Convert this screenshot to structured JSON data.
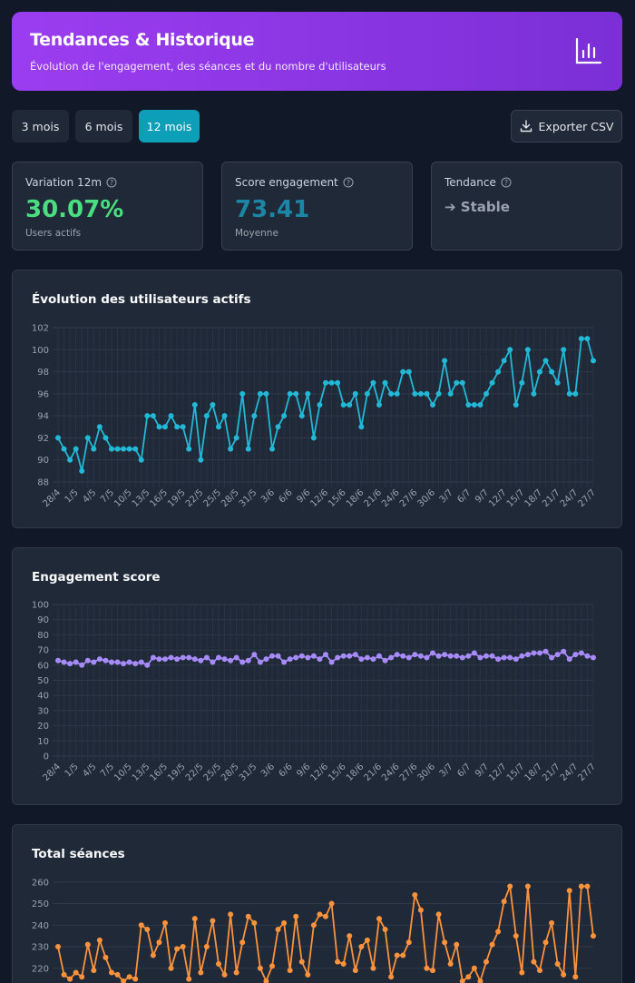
{
  "header": {
    "title": "Tendances & Historique",
    "subtitle": "Évolution de l'engagement, des séances et du nombre d'utilisateurs"
  },
  "tabs": [
    "3 mois",
    "6 mois",
    "12 mois"
  ],
  "export": "Exporter CSV",
  "cards": [
    {
      "label": "Variation 12m",
      "value": "30.07%",
      "caption": "Users actifs"
    },
    {
      "label": "Score engagement",
      "value": "73.41",
      "caption": "Moyenne"
    },
    {
      "label": "Tendance",
      "value": "➔ Stable"
    }
  ],
  "chart_data": [
    {
      "type": "line",
      "title": "Évolution des utilisateurs actifs",
      "color": "#22b8d6",
      "categories": [
        "28/4",
        null,
        null,
        "1/5",
        null,
        null,
        "4/5",
        null,
        null,
        "7/5",
        null,
        null,
        "10/5",
        null,
        null,
        "13/5",
        null,
        null,
        "16/5",
        null,
        null,
        "19/5",
        null,
        null,
        "22/5",
        null,
        null,
        "25/5",
        null,
        null,
        "28/5",
        null,
        null,
        "31/5",
        null,
        null,
        "3/6",
        null,
        null,
        "6/6",
        null,
        null,
        "9/6",
        null,
        null,
        "12/6",
        null,
        null,
        "15/6",
        null,
        null,
        "18/6",
        null,
        null,
        "21/6",
        null,
        null,
        "24/6",
        null,
        null,
        "27/6",
        null,
        null,
        "30/6",
        null,
        null,
        "3/7",
        null,
        null,
        "6/7",
        null,
        null,
        "9/7",
        null,
        null,
        "12/7",
        null,
        null,
        "15/7",
        null,
        null,
        "18/7",
        null,
        null,
        "21/7",
        null,
        null,
        "24/7",
        null,
        null,
        "27/7"
      ],
      "values": [
        92,
        91,
        90,
        91,
        89,
        92,
        91,
        93,
        92,
        91,
        91,
        91,
        91,
        91,
        90,
        94,
        94,
        93,
        93,
        94,
        93,
        93,
        91,
        95,
        90,
        94,
        95,
        93,
        94,
        91,
        92,
        96,
        91,
        94,
        96,
        96,
        91,
        93,
        94,
        96,
        96,
        94,
        96,
        92,
        95,
        97,
        97,
        97,
        95,
        95,
        96,
        93,
        96,
        97,
        95,
        97,
        96,
        96,
        98,
        98,
        96,
        96,
        96,
        95,
        96,
        99,
        96,
        97,
        97,
        95,
        95,
        95,
        96,
        97,
        98,
        99,
        100,
        95,
        97,
        100,
        96,
        98,
        99,
        98,
        97,
        100,
        96,
        96,
        101,
        101,
        99
      ],
      "ylim": [
        88,
        102
      ],
      "yticks": [
        88,
        90,
        92,
        94,
        96,
        98,
        100,
        102
      ],
      "grid": true
    },
    {
      "type": "line",
      "title": "Engagement score",
      "color": "#a78bfa",
      "categories": [
        "28/4",
        null,
        null,
        "1/5",
        null,
        null,
        "4/5",
        null,
        null,
        "7/5",
        null,
        null,
        "10/5",
        null,
        null,
        "13/5",
        null,
        null,
        "16/5",
        null,
        null,
        "19/5",
        null,
        null,
        "22/5",
        null,
        null,
        "25/5",
        null,
        null,
        "28/5",
        null,
        null,
        "31/5",
        null,
        null,
        "3/6",
        null,
        null,
        "6/6",
        null,
        null,
        "9/6",
        null,
        null,
        "12/6",
        null,
        null,
        "15/6",
        null,
        null,
        "18/6",
        null,
        null,
        "21/6",
        null,
        null,
        "24/6",
        null,
        null,
        "27/6",
        null,
        null,
        "30/6",
        null,
        null,
        "3/7",
        null,
        null,
        "6/7",
        null,
        null,
        "9/7",
        null,
        null,
        "12/7",
        null,
        null,
        "15/7",
        null,
        null,
        "18/7",
        null,
        null,
        "21/7",
        null,
        null,
        "24/7",
        null,
        null,
        "27/7"
      ],
      "values": [
        63,
        62,
        61,
        62,
        60,
        63,
        62,
        64,
        63,
        62,
        62,
        61,
        62,
        61,
        62,
        60,
        65,
        64,
        64,
        65,
        64,
        65,
        65,
        64,
        63,
        65,
        62,
        65,
        64,
        63,
        65,
        62,
        63,
        67,
        62,
        64,
        66,
        66,
        62,
        64,
        65,
        66,
        65,
        66,
        64,
        67,
        62,
        65,
        66,
        66,
        67,
        64,
        65,
        64,
        66,
        63,
        65,
        67,
        66,
        65,
        67,
        66,
        65,
        68,
        66,
        67,
        66,
        66,
        65,
        66,
        68,
        65,
        66,
        66,
        64,
        65,
        65,
        64,
        66,
        67,
        68,
        68,
        69,
        65,
        67,
        69,
        64,
        67,
        68,
        66,
        65
      ],
      "ylim": [
        0,
        100
      ],
      "yticks": [
        0,
        10,
        20,
        30,
        40,
        50,
        60,
        70,
        80,
        90,
        100
      ],
      "grid": true
    },
    {
      "type": "line",
      "title": "Total séances",
      "color": "#fb923c",
      "values": [
        230,
        217,
        215,
        218,
        216,
        231,
        219,
        233,
        225,
        218,
        217,
        214,
        216,
        215,
        240,
        238,
        226,
        232,
        241,
        220,
        229,
        230,
        215,
        243,
        218,
        230,
        242,
        222,
        217,
        245,
        218,
        232,
        244,
        241,
        220,
        214,
        221,
        238,
        241,
        219,
        244,
        223,
        217,
        240,
        245,
        244,
        250,
        223,
        222,
        235,
        219,
        230,
        233,
        220,
        243,
        238,
        216,
        226,
        226,
        232,
        254,
        247,
        220,
        219,
        245,
        232,
        222,
        231,
        214,
        216,
        220,
        214,
        223,
        231,
        237,
        251,
        258,
        235,
        218,
        258,
        223,
        219,
        232,
        241,
        222,
        217,
        256,
        216,
        258,
        258,
        235
      ],
      "ylim": [
        212,
        262
      ],
      "yticks": [
        220,
        230,
        240,
        250,
        260
      ],
      "grid": true
    }
  ]
}
